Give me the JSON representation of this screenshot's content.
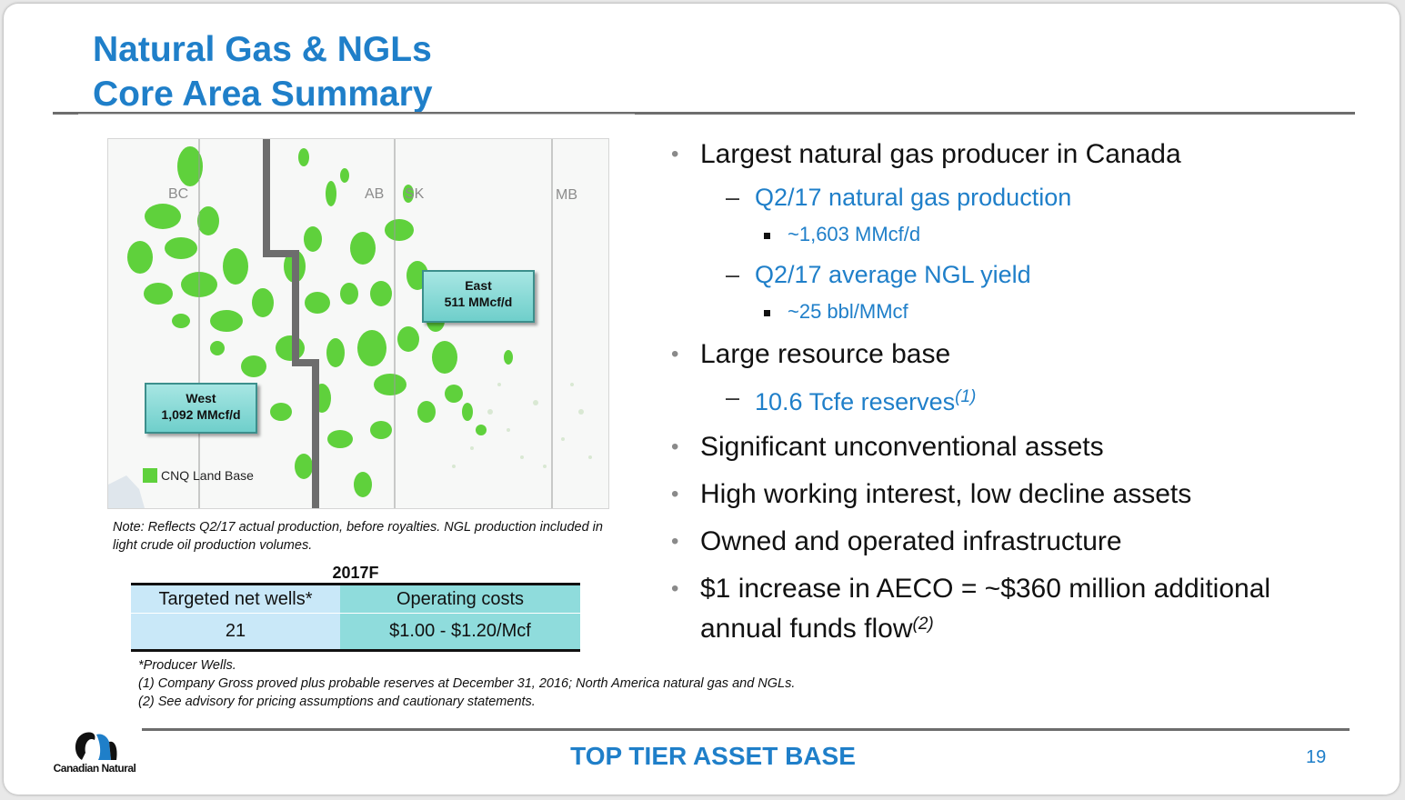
{
  "title": {
    "line1": "Natural Gas & NGLs",
    "line2": "Core Area Summary"
  },
  "map": {
    "provinces": [
      "BC",
      "AB",
      "SK",
      "MB"
    ],
    "callout_east": {
      "label": "East",
      "value": "511 MMcf/d"
    },
    "callout_west": {
      "label": "West",
      "value": "1,092 MMcf/d"
    },
    "legend": "CNQ Land Base",
    "colors": {
      "land": "#5fd13c",
      "callout": "#8fdcdc",
      "border": "#6d6d6d"
    }
  },
  "note": "Note: Reflects Q2/17 actual production, before royalties. NGL production included in light crude oil production volumes.",
  "table": {
    "title": "2017F",
    "headers": [
      "Targeted net wells*",
      "Operating costs"
    ],
    "values": [
      "21",
      "$1.00 - $1.20/Mcf"
    ]
  },
  "footnotes": [
    "*Producer Wells.",
    "(1) Company Gross proved plus probable reserves at December 31, 2016; North America natural gas and NGLs.",
    "(2) See advisory for pricing assumptions and cautionary statements."
  ],
  "bullets": {
    "b1": "Largest natural gas producer in Canada",
    "b1_sub1": "Q2/17 natural gas production",
    "b1_sub1_item": "~1,603 MMcf/d",
    "b1_sub2": "Q2/17 average NGL yield",
    "b1_sub2_item": "~25 bbl/MMcf",
    "b2": "Large resource base",
    "b2_sub1": "10.6 Tcfe reserves",
    "b2_sub1_sup": "(1)",
    "b3": "Significant unconventional assets",
    "b4": "High working interest, low decline assets",
    "b5": "Owned and operated infrastructure",
    "b6_line1": "$1 increase in AECO = ~$360 million additional",
    "b6_line2": "annual funds flow",
    "b6_sup": "(2)"
  },
  "footer": {
    "logo": "Canadian Natural",
    "tagline": "TOP TIER ASSET BASE",
    "page": "19"
  },
  "accent_color": "#1f7fc9"
}
